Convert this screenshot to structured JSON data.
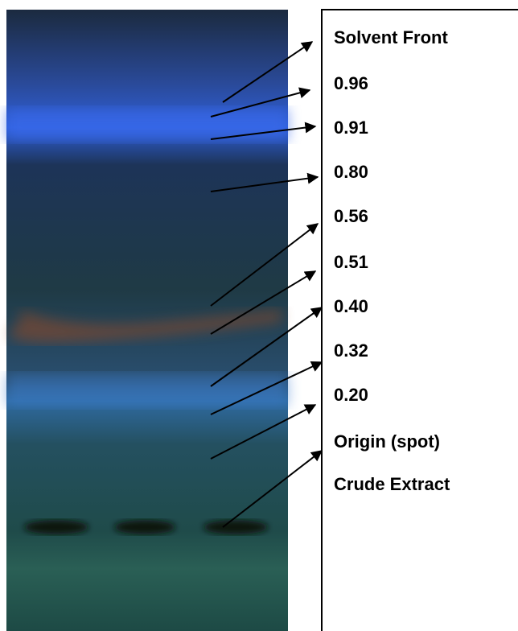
{
  "labels": [
    "Solvent Front",
    "0.96",
    "0.91",
    "0.80",
    "0.56",
    "0.51",
    "0.40",
    "0.32",
    "0.20",
    "Origin (spot)",
    "Crude Extract"
  ]
}
